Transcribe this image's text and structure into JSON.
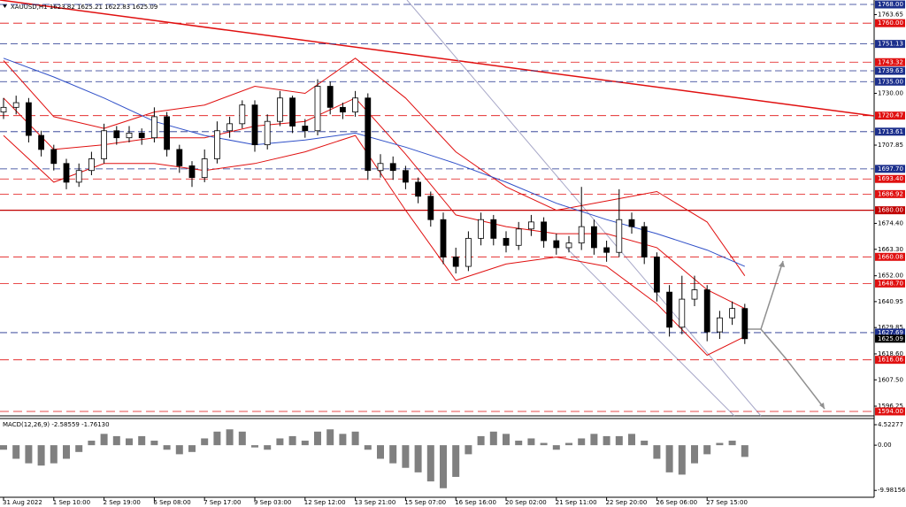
{
  "chart_data": {
    "type": "candlestick",
    "title": "XAUUSD,H1  1623.82 1625.21 1622.83 1625.09",
    "categories": [
      "31 Aug 2022",
      null,
      null,
      null,
      "1 Sep 10:00",
      null,
      null,
      null,
      "2 Sep 19:00",
      null,
      null,
      null,
      "6 Sep 08:00",
      null,
      null,
      null,
      "7 Sep 17:00",
      null,
      null,
      null,
      "9 Sep 03:00",
      null,
      null,
      null,
      "12 Sep 12:00",
      null,
      null,
      null,
      "13 Sep 21:00",
      null,
      null,
      null,
      "15 Sep 07:00",
      null,
      null,
      null,
      "16 Sep 16:00",
      null,
      null,
      null,
      "20 Sep 02:00",
      null,
      null,
      null,
      "21 Sep 11:00",
      null,
      null,
      null,
      "22 Sep 20:00",
      null,
      null,
      null,
      "26 Sep 06:00",
      null,
      null,
      null,
      "27 Sep 15:00",
      null,
      null,
      null
    ],
    "open": [
      1722,
      1724,
      1726,
      1712,
      1706,
      1700,
      1692,
      1697,
      1702,
      1714,
      1711,
      1713,
      1711,
      1720,
      1706,
      1699,
      1694,
      1702,
      1714,
      1717,
      1725,
      1708,
      1718,
      1728,
      1716,
      1714,
      1733,
      1724,
      1722,
      1728,
      1697,
      1700,
      1697,
      1692,
      1686,
      1676,
      1660,
      1656,
      1668,
      1676,
      1668,
      1665,
      1672,
      1675,
      1667,
      1664,
      1666,
      1673,
      1664,
      1662,
      1676,
      1673,
      1660,
      1645,
      1630,
      1642,
      1646,
      1628,
      1634,
      1638
    ],
    "high": [
      1728,
      1729,
      1728,
      1714,
      1708,
      1702,
      1700,
      1705,
      1717,
      1716,
      1716,
      1715,
      1724,
      1722,
      1708,
      1701,
      1706,
      1718,
      1720,
      1727,
      1727,
      1721,
      1731,
      1729,
      1719,
      1736,
      1735,
      1726,
      1731,
      1730,
      1704,
      1703,
      1699,
      1694,
      1688,
      1679,
      1664,
      1671,
      1679,
      1678,
      1671,
      1675,
      1678,
      1677,
      1670,
      1669,
      1690,
      1676,
      1667,
      1689,
      1679,
      1675,
      1662,
      1648,
      1652,
      1652,
      1648,
      1637,
      1641,
      1640
    ],
    "low": [
      1719,
      1721,
      1709,
      1703,
      1697,
      1689,
      1690,
      1695,
      1700,
      1708,
      1709,
      1708,
      1709,
      1703,
      1696,
      1690,
      1692,
      1700,
      1711,
      1715,
      1705,
      1706,
      1716,
      1713,
      1711,
      1712,
      1721,
      1719,
      1720,
      1693,
      1694,
      1693,
      1689,
      1683,
      1673,
      1657,
      1653,
      1654,
      1665,
      1665,
      1662,
      1663,
      1669,
      1664,
      1661,
      1662,
      1663,
      1661,
      1658,
      1660,
      1670,
      1657,
      1641,
      1626,
      1627,
      1639,
      1624,
      1625,
      1631,
      1622.83
    ],
    "close": [
      1724,
      1726,
      1712,
      1706,
      1700,
      1692,
      1697,
      1702,
      1714,
      1711,
      1713,
      1711,
      1720,
      1706,
      1699,
      1694,
      1702,
      1714,
      1717,
      1725,
      1708,
      1718,
      1728,
      1716,
      1714,
      1733,
      1724,
      1722,
      1728,
      1697,
      1700,
      1697,
      1692,
      1686,
      1676,
      1660,
      1656,
      1668,
      1676,
      1668,
      1665,
      1672,
      1675,
      1667,
      1664,
      1666,
      1673,
      1664,
      1662,
      1676,
      1673,
      1660,
      1645,
      1630,
      1642,
      1646,
      1628,
      1634,
      1638,
      1625.09
    ],
    "overlays": [
      {
        "color": "#e01010",
        "x": [
          0,
          4,
          8,
          12,
          16,
          20,
          24,
          28,
          32,
          36,
          40,
          44,
          48,
          52,
          56,
          59
        ],
        "values": [
          1744,
          1720,
          1715,
          1722,
          1725,
          1733,
          1730,
          1745,
          1728,
          1705,
          1690,
          1680,
          1684,
          1688,
          1675,
          1652
        ]
      },
      {
        "color": "#e01010",
        "x": [
          0,
          4,
          8,
          12,
          16,
          20,
          24,
          28,
          32,
          36,
          40,
          44,
          48,
          52,
          56,
          59
        ],
        "values": [
          1728,
          1706,
          1708,
          1711,
          1711,
          1716,
          1718,
          1728,
          1704,
          1678,
          1673,
          1670,
          1670,
          1664,
          1646,
          1638
        ]
      },
      {
        "color": "#e01010",
        "x": [
          0,
          4,
          8,
          12,
          16,
          20,
          24,
          28,
          32,
          36,
          40,
          44,
          48,
          52,
          56,
          59
        ],
        "values": [
          1712,
          1692,
          1700,
          1700,
          1697,
          1700,
          1705,
          1712,
          1680,
          1650,
          1657,
          1660,
          1656,
          1640,
          1618,
          1626
        ]
      },
      {
        "color": "#3050c8",
        "x": [
          0,
          4,
          8,
          12,
          16,
          20,
          24,
          28,
          32,
          36,
          40,
          44,
          48,
          52,
          56,
          59
        ],
        "values": [
          1745,
          1737,
          1728,
          1718,
          1712,
          1708,
          1710,
          1713,
          1707,
          1700,
          1692,
          1683,
          1676,
          1670,
          1663,
          1656
        ]
      }
    ],
    "ylim": [
      1592.1,
      1769.9
    ],
    "yticks": [
      1763.65,
      {
        "value": 1730,
        "label": "1730.00"
      },
      1707.85,
      {
        "value": 1674.4,
        "label": "1674.40"
      },
      {
        "value": 1663.3,
        "label": "1663.30"
      },
      {
        "value": 1652,
        "label": "1652.00"
      },
      1640.95,
      1629.85,
      {
        "value": 1618.6,
        "label": "1618.60"
      },
      {
        "value": 1607.5,
        "label": "1607.50"
      },
      1596.25
    ],
    "levels": [
      {
        "value": 1768,
        "label": "1768.00",
        "color": "#1c2f8c"
      },
      {
        "value": 1760,
        "label": "1760.00",
        "color": "#e01010"
      },
      {
        "value": 1751.13,
        "label": "1751.13",
        "color": "#1c2f8c"
      },
      {
        "value": 1743.32,
        "label": "1743.32",
        "color": "#e01010"
      },
      {
        "value": 1739.63,
        "label": "1739.63",
        "color": "#1c2f8c"
      },
      {
        "value": 1735,
        "label": "1735.00",
        "color": "#1c2f8c"
      },
      {
        "value": 1720.47,
        "label": "1720.47",
        "color": "#e01010"
      },
      {
        "value": 1713.61,
        "label": "1713.61",
        "color": "#1c2f8c"
      },
      {
        "value": 1697.7,
        "label": "1697.70",
        "color": "#1c2f8c"
      },
      {
        "value": 1693.4,
        "label": "1693.40",
        "color": "#e01010"
      },
      {
        "value": 1686.92,
        "label": "1686.92",
        "color": "#e01010"
      },
      {
        "value": 1680,
        "label": "1680.00",
        "color": "#c00000"
      },
      {
        "value": 1660.08,
        "label": "1660.08",
        "color": "#e01010"
      },
      {
        "value": 1648.7,
        "label": "1648.70",
        "color": "#e01010"
      },
      {
        "value": 1627.69,
        "label": "1627.69",
        "color": "#1c2f8c"
      },
      {
        "value": 1625.09,
        "label": "1625.09",
        "color": "#000000"
      },
      {
        "value": 1616.06,
        "label": "1616.06",
        "color": "#e01010"
      },
      {
        "value": 1594,
        "label": "1594.00",
        "color": "#e01010"
      }
    ],
    "macd": {
      "title": "MACD(12,26,9) -2.58559 -1.76130",
      "color": "#808080",
      "values": [
        -1,
        -3,
        -4,
        -4.5,
        -4,
        -3,
        -1.5,
        1,
        2.5,
        2,
        1.5,
        2,
        1,
        -1,
        -2,
        -1.5,
        1.5,
        3,
        3.5,
        3,
        -0.5,
        -1,
        1.5,
        2,
        1,
        3,
        3.5,
        2.5,
        3,
        -1,
        -3,
        -4,
        -5,
        -6,
        -8,
        -9.5,
        -7,
        -2,
        2,
        3,
        2.5,
        1,
        1.5,
        0.5,
        -1,
        0.5,
        1.5,
        2.5,
        2,
        2,
        2.5,
        1,
        -3,
        -6,
        -6.5,
        -4,
        -2,
        0.5,
        1,
        -2.58559
      ],
      "ylim": [
        -11.5,
        5.5
      ],
      "yticks": [
        4.52277,
        {
          "value": 0,
          "label": "0.00"
        },
        -9.98156
      ]
    }
  }
}
